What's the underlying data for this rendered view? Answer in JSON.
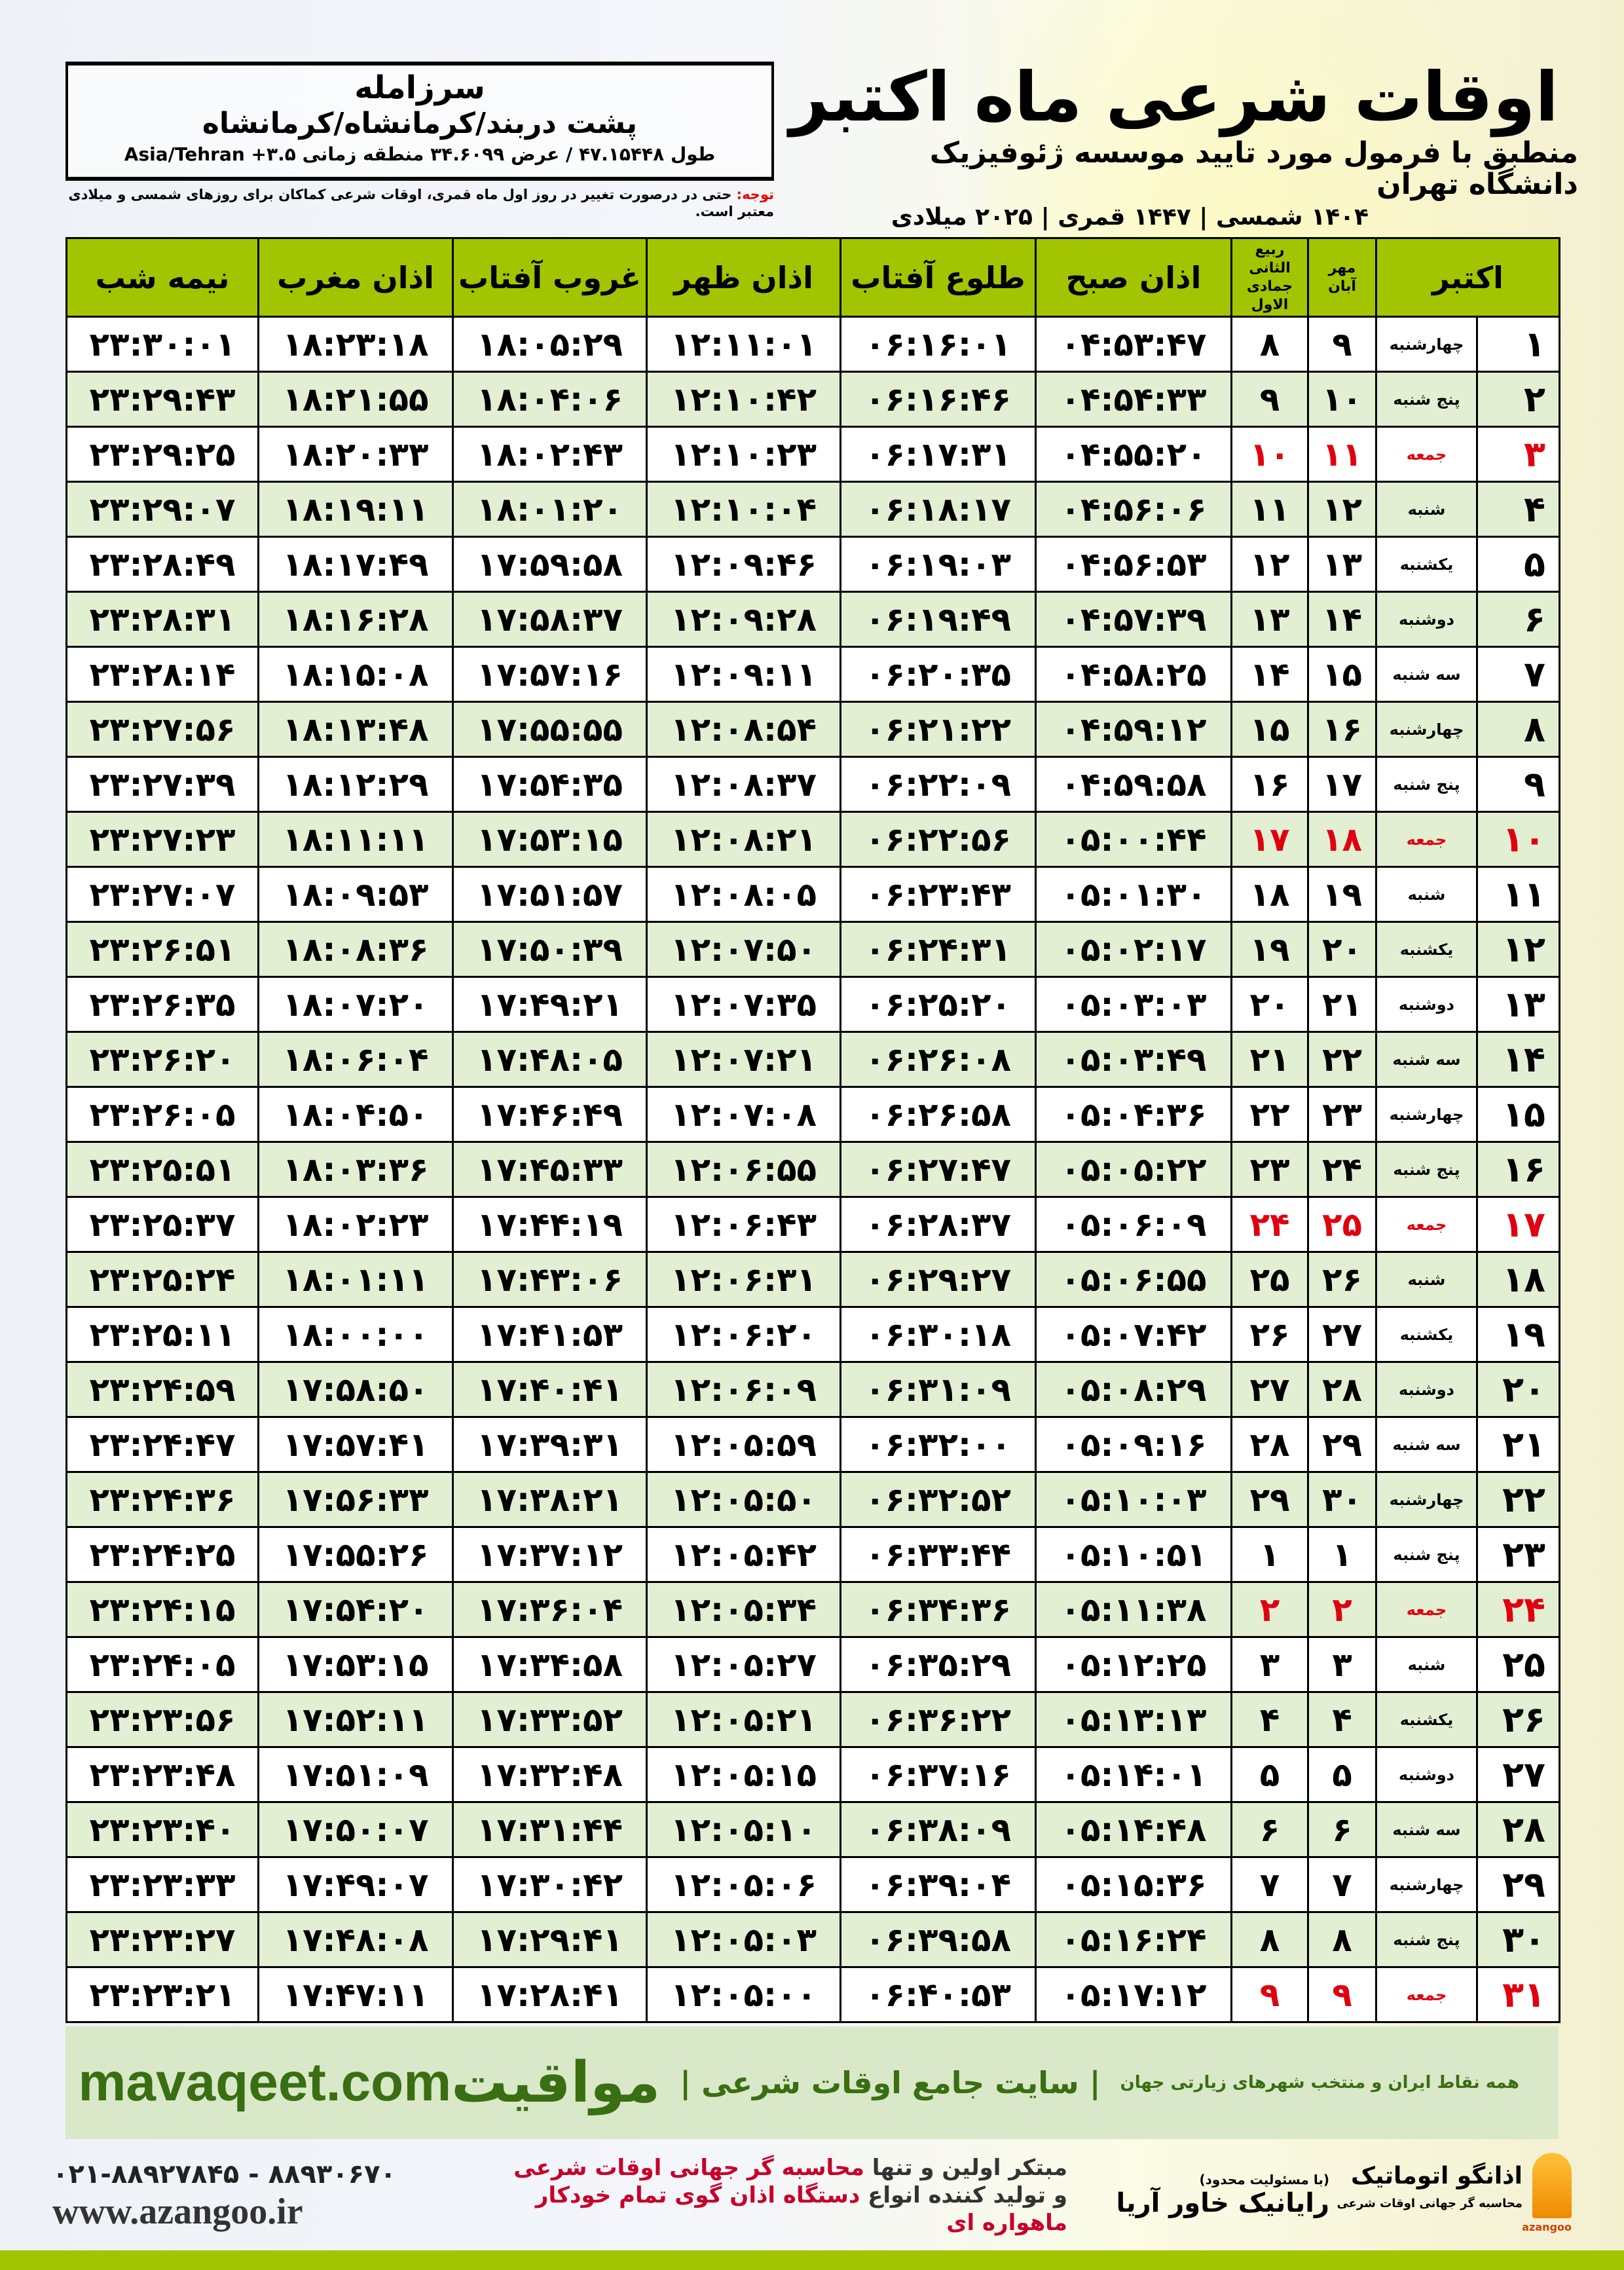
{
  "location": {
    "name": "سرزامله",
    "path": "پشت دربند/کرمانشاه/کرمانشاه",
    "coords": "طول ۴۷.۱۵۴۴۸ / عرض ۳۴.۶۰۹۹ منطقه زمانی ۳.۵+ Asia/Tehran"
  },
  "header": {
    "title": "اوقات شرعی ماه اکتبر",
    "subtitle": "منطبق با فرمول مورد تایید موسسه ژئوفیزیک دانشگاه تهران",
    "dates": "۱۴۰۴ شمسی | ۱۴۴۷ قمری | ۲۰۲۵ میلادی"
  },
  "note": {
    "label": "توجه:",
    "text": " حتی در درصورت تغییر در روز اول ماه قمری، اوقات شرعی کماکان برای روزهای شمسی و میلادی معتبر است."
  },
  "columns": {
    "month": "اکتبر",
    "solar_top": "مهر",
    "solar_bottom": "آبان",
    "lunar_top": "ربیع الثانی",
    "lunar_bottom": "جمادی الاول",
    "fajr": "اذان صبح",
    "sunrise": "طلوع آفتاب",
    "dhuhr": "اذان ظهر",
    "sunset": "غروب آفتاب",
    "maghrib": "اذان مغرب",
    "midnight": "نیمه شب"
  },
  "colors": {
    "header": "#a3c400",
    "row_alt": "#e3efd2",
    "friday": "#e00010",
    "footer_band": "#d9e8c8",
    "brand": "#3a6e12"
  },
  "rows": [
    [
      "۱",
      "چهارشنبه",
      "۹",
      "۸",
      "۰۴:۵۳:۴۷",
      "۰۶:۱۶:۰۱",
      "۱۲:۱۱:۰۱",
      "۱۸:۰۵:۲۹",
      "۱۸:۲۳:۱۸",
      "۲۳:۳۰:۰۱"
    ],
    [
      "۲",
      "پنج شنبه",
      "۱۰",
      "۹",
      "۰۴:۵۴:۳۳",
      "۰۶:۱۶:۴۶",
      "۱۲:۱۰:۴۲",
      "۱۸:۰۴:۰۶",
      "۱۸:۲۱:۵۵",
      "۲۳:۲۹:۴۳"
    ],
    [
      "۳",
      "جمعه",
      "۱۱",
      "۱۰",
      "۰۴:۵۵:۲۰",
      "۰۶:۱۷:۳۱",
      "۱۲:۱۰:۲۳",
      "۱۸:۰۲:۴۳",
      "۱۸:۲۰:۳۳",
      "۲۳:۲۹:۲۵"
    ],
    [
      "۴",
      "شنبه",
      "۱۲",
      "۱۱",
      "۰۴:۵۶:۰۶",
      "۰۶:۱۸:۱۷",
      "۱۲:۱۰:۰۴",
      "۱۸:۰۱:۲۰",
      "۱۸:۱۹:۱۱",
      "۲۳:۲۹:۰۷"
    ],
    [
      "۵",
      "یکشنبه",
      "۱۳",
      "۱۲",
      "۰۴:۵۶:۵۳",
      "۰۶:۱۹:۰۳",
      "۱۲:۰۹:۴۶",
      "۱۷:۵۹:۵۸",
      "۱۸:۱۷:۴۹",
      "۲۳:۲۸:۴۹"
    ],
    [
      "۶",
      "دوشنبه",
      "۱۴",
      "۱۳",
      "۰۴:۵۷:۳۹",
      "۰۶:۱۹:۴۹",
      "۱۲:۰۹:۲۸",
      "۱۷:۵۸:۳۷",
      "۱۸:۱۶:۲۸",
      "۲۳:۲۸:۳۱"
    ],
    [
      "۷",
      "سه شنبه",
      "۱۵",
      "۱۴",
      "۰۴:۵۸:۲۵",
      "۰۶:۲۰:۳۵",
      "۱۲:۰۹:۱۱",
      "۱۷:۵۷:۱۶",
      "۱۸:۱۵:۰۸",
      "۲۳:۲۸:۱۴"
    ],
    [
      "۸",
      "چهارشنبه",
      "۱۶",
      "۱۵",
      "۰۴:۵۹:۱۲",
      "۰۶:۲۱:۲۲",
      "۱۲:۰۸:۵۴",
      "۱۷:۵۵:۵۵",
      "۱۸:۱۳:۴۸",
      "۲۳:۲۷:۵۶"
    ],
    [
      "۹",
      "پنج شنبه",
      "۱۷",
      "۱۶",
      "۰۴:۵۹:۵۸",
      "۰۶:۲۲:۰۹",
      "۱۲:۰۸:۳۷",
      "۱۷:۵۴:۳۵",
      "۱۸:۱۲:۲۹",
      "۲۳:۲۷:۳۹"
    ],
    [
      "۱۰",
      "جمعه",
      "۱۸",
      "۱۷",
      "۰۵:۰۰:۴۴",
      "۰۶:۲۲:۵۶",
      "۱۲:۰۸:۲۱",
      "۱۷:۵۳:۱۵",
      "۱۸:۱۱:۱۱",
      "۲۳:۲۷:۲۳"
    ],
    [
      "۱۱",
      "شنبه",
      "۱۹",
      "۱۸",
      "۰۵:۰۱:۳۰",
      "۰۶:۲۳:۴۳",
      "۱۲:۰۸:۰۵",
      "۱۷:۵۱:۵۷",
      "۱۸:۰۹:۵۳",
      "۲۳:۲۷:۰۷"
    ],
    [
      "۱۲",
      "یکشنبه",
      "۲۰",
      "۱۹",
      "۰۵:۰۲:۱۷",
      "۰۶:۲۴:۳۱",
      "۱۲:۰۷:۵۰",
      "۱۷:۵۰:۳۹",
      "۱۸:۰۸:۳۶",
      "۲۳:۲۶:۵۱"
    ],
    [
      "۱۳",
      "دوشنبه",
      "۲۱",
      "۲۰",
      "۰۵:۰۳:۰۳",
      "۰۶:۲۵:۲۰",
      "۱۲:۰۷:۳۵",
      "۱۷:۴۹:۲۱",
      "۱۸:۰۷:۲۰",
      "۲۳:۲۶:۳۵"
    ],
    [
      "۱۴",
      "سه شنبه",
      "۲۲",
      "۲۱",
      "۰۵:۰۳:۴۹",
      "۰۶:۲۶:۰۸",
      "۱۲:۰۷:۲۱",
      "۱۷:۴۸:۰۵",
      "۱۸:۰۶:۰۴",
      "۲۳:۲۶:۲۰"
    ],
    [
      "۱۵",
      "چهارشنبه",
      "۲۳",
      "۲۲",
      "۰۵:۰۴:۳۶",
      "۰۶:۲۶:۵۸",
      "۱۲:۰۷:۰۸",
      "۱۷:۴۶:۴۹",
      "۱۸:۰۴:۵۰",
      "۲۳:۲۶:۰۵"
    ],
    [
      "۱۶",
      "پنج شنبه",
      "۲۴",
      "۲۳",
      "۰۵:۰۵:۲۲",
      "۰۶:۲۷:۴۷",
      "۱۲:۰۶:۵۵",
      "۱۷:۴۵:۳۳",
      "۱۸:۰۳:۳۶",
      "۲۳:۲۵:۵۱"
    ],
    [
      "۱۷",
      "جمعه",
      "۲۵",
      "۲۴",
      "۰۵:۰۶:۰۹",
      "۰۶:۲۸:۳۷",
      "۱۲:۰۶:۴۳",
      "۱۷:۴۴:۱۹",
      "۱۸:۰۲:۲۳",
      "۲۳:۲۵:۳۷"
    ],
    [
      "۱۸",
      "شنبه",
      "۲۶",
      "۲۵",
      "۰۵:۰۶:۵۵",
      "۰۶:۲۹:۲۷",
      "۱۲:۰۶:۳۱",
      "۱۷:۴۳:۰۶",
      "۱۸:۰۱:۱۱",
      "۲۳:۲۵:۲۴"
    ],
    [
      "۱۹",
      "یکشنبه",
      "۲۷",
      "۲۶",
      "۰۵:۰۷:۴۲",
      "۰۶:۳۰:۱۸",
      "۱۲:۰۶:۲۰",
      "۱۷:۴۱:۵۳",
      "۱۸:۰۰:۰۰",
      "۲۳:۲۵:۱۱"
    ],
    [
      "۲۰",
      "دوشنبه",
      "۲۸",
      "۲۷",
      "۰۵:۰۸:۲۹",
      "۰۶:۳۱:۰۹",
      "۱۲:۰۶:۰۹",
      "۱۷:۴۰:۴۱",
      "۱۷:۵۸:۵۰",
      "۲۳:۲۴:۵۹"
    ],
    [
      "۲۱",
      "سه شنبه",
      "۲۹",
      "۲۸",
      "۰۵:۰۹:۱۶",
      "۰۶:۳۲:۰۰",
      "۱۲:۰۵:۵۹",
      "۱۷:۳۹:۳۱",
      "۱۷:۵۷:۴۱",
      "۲۳:۲۴:۴۷"
    ],
    [
      "۲۲",
      "چهارشنبه",
      "۳۰",
      "۲۹",
      "۰۵:۱۰:۰۳",
      "۰۶:۳۲:۵۲",
      "۱۲:۰۵:۵۰",
      "۱۷:۳۸:۲۱",
      "۱۷:۵۶:۳۳",
      "۲۳:۲۴:۳۶"
    ],
    [
      "۲۳",
      "پنج شنبه",
      "۱",
      "۱",
      "۰۵:۱۰:۵۱",
      "۰۶:۳۳:۴۴",
      "۱۲:۰۵:۴۲",
      "۱۷:۳۷:۱۲",
      "۱۷:۵۵:۲۶",
      "۲۳:۲۴:۲۵"
    ],
    [
      "۲۴",
      "جمعه",
      "۲",
      "۲",
      "۰۵:۱۱:۳۸",
      "۰۶:۳۴:۳۶",
      "۱۲:۰۵:۳۴",
      "۱۷:۳۶:۰۴",
      "۱۷:۵۴:۲۰",
      "۲۳:۲۴:۱۵"
    ],
    [
      "۲۵",
      "شنبه",
      "۳",
      "۳",
      "۰۵:۱۲:۲۵",
      "۰۶:۳۵:۲۹",
      "۱۲:۰۵:۲۷",
      "۱۷:۳۴:۵۸",
      "۱۷:۵۳:۱۵",
      "۲۳:۲۴:۰۵"
    ],
    [
      "۲۶",
      "یکشنبه",
      "۴",
      "۴",
      "۰۵:۱۳:۱۳",
      "۰۶:۳۶:۲۲",
      "۱۲:۰۵:۲۱",
      "۱۷:۳۳:۵۲",
      "۱۷:۵۲:۱۱",
      "۲۳:۲۳:۵۶"
    ],
    [
      "۲۷",
      "دوشنبه",
      "۵",
      "۵",
      "۰۵:۱۴:۰۱",
      "۰۶:۳۷:۱۶",
      "۱۲:۰۵:۱۵",
      "۱۷:۳۲:۴۸",
      "۱۷:۵۱:۰۹",
      "۲۳:۲۳:۴۸"
    ],
    [
      "۲۸",
      "سه شنبه",
      "۶",
      "۶",
      "۰۵:۱۴:۴۸",
      "۰۶:۳۸:۰۹",
      "۱۲:۰۵:۱۰",
      "۱۷:۳۱:۴۴",
      "۱۷:۵۰:۰۷",
      "۲۳:۲۳:۴۰"
    ],
    [
      "۲۹",
      "چهارشنبه",
      "۷",
      "۷",
      "۰۵:۱۵:۳۶",
      "۰۶:۳۹:۰۴",
      "۱۲:۰۵:۰۶",
      "۱۷:۳۰:۴۲",
      "۱۷:۴۹:۰۷",
      "۲۳:۲۳:۳۳"
    ],
    [
      "۳۰",
      "پنج شنبه",
      "۸",
      "۸",
      "۰۵:۱۶:۲۴",
      "۰۶:۳۹:۵۸",
      "۱۲:۰۵:۰۳",
      "۱۷:۲۹:۴۱",
      "۱۷:۴۸:۰۸",
      "۲۳:۲۳:۲۷"
    ],
    [
      "۳۱",
      "جمعه",
      "۹",
      "۹",
      "۰۵:۱۷:۱۲",
      "۰۶:۴۰:۵۳",
      "۱۲:۰۵:۰۰",
      "۱۷:۲۸:۴۱",
      "۱۷:۴۷:۱۱",
      "۲۳:۲۳:۲۱"
    ]
  ],
  "footer": {
    "brand": "مواقیت",
    "tagline": "| سایت جامع اوقات شرعی |",
    "tagline_sub": "همه نقاط ایران و منتخب شهرهای زیارتی جهان",
    "site": "mavaqeet.com"
  },
  "bottom": {
    "phone": "۰۲۱-۸۸۹۲۷۸۴۵ - ۸۸۹۳۰۶۷۰",
    "www": "www.azangoo.ir",
    "slogan1_a": "مبتکر اولین و تنها ",
    "slogan1_b": "محاسبه گر جهانی اوقات شرعی",
    "slogan2_a": "و تولید کننده انواع ",
    "slogan2_b": "دستگاه اذان گوی تمام خودکار ماهواره ای",
    "rayanik_note": "(با مسئولیت محدود)",
    "rayanik": "رایانیک خاور آریا",
    "azangoo_title": "اذانگو اتوماتیک",
    "azangoo_sub": "محاسبه گر جهانی اوقات شرعی",
    "azangoo_en": "azangoo"
  }
}
